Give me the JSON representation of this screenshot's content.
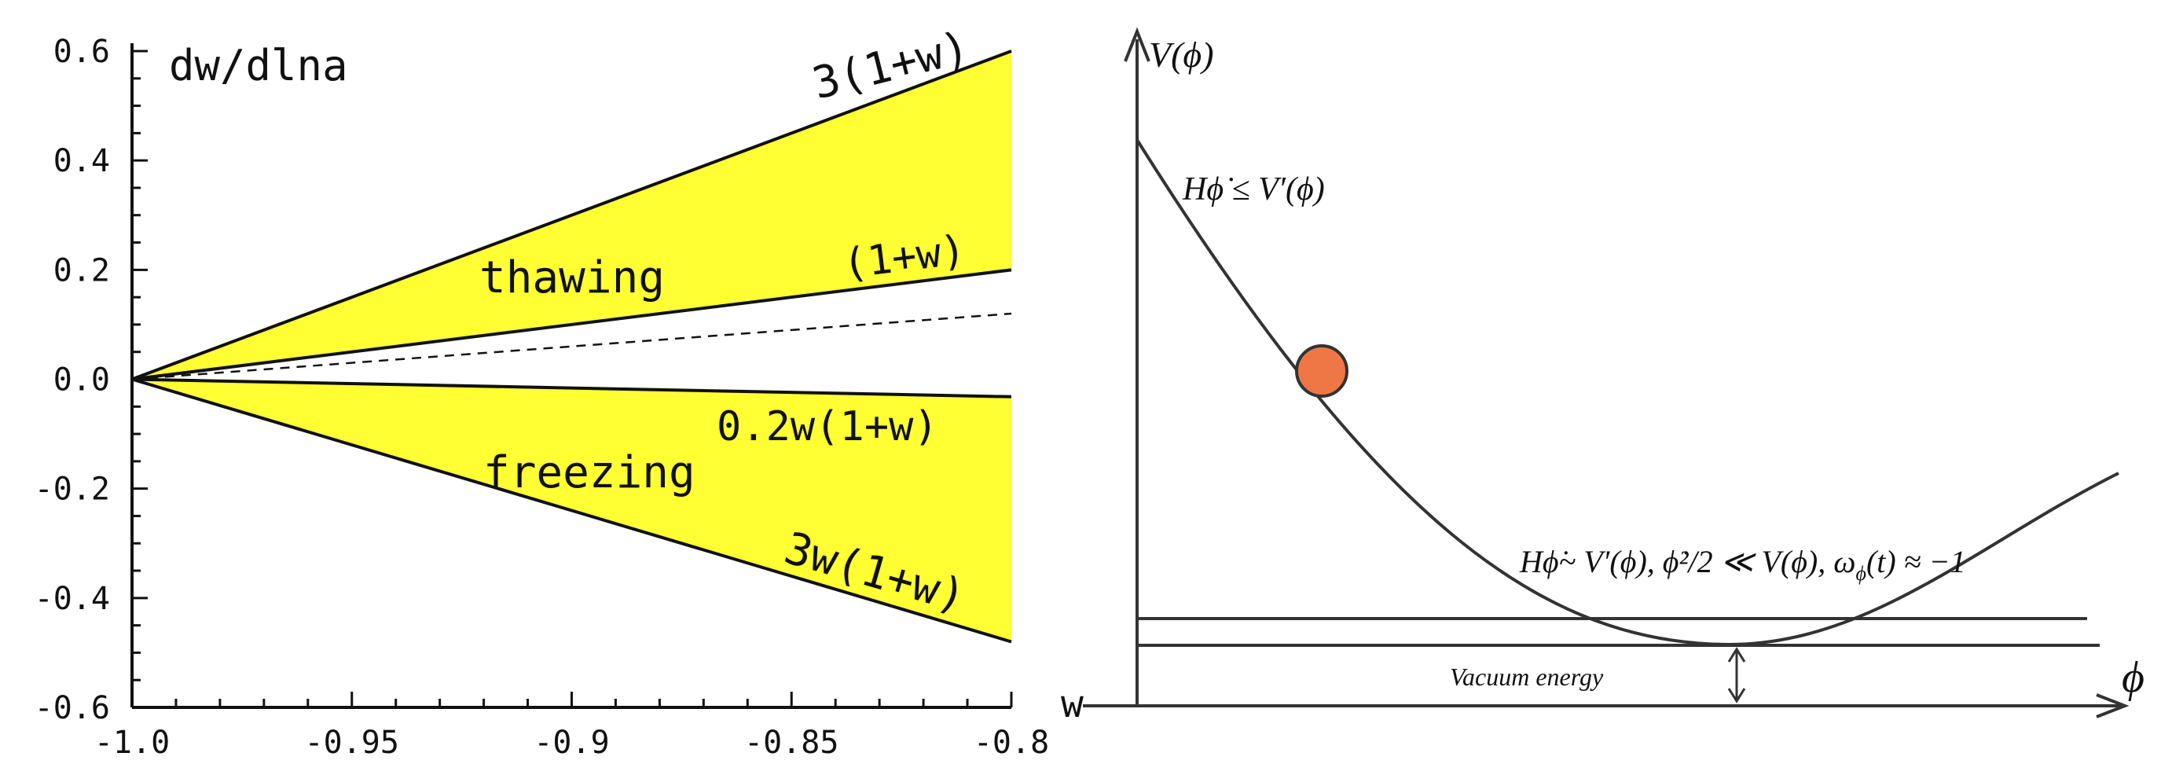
{
  "chart_data": [
    {
      "type": "area",
      "title": "",
      "ylabel": "dw/dlna",
      "xlabel": "",
      "xlim": [
        -1.0,
        -0.8
      ],
      "ylim": [
        -0.6,
        0.6
      ],
      "x_ticks": [
        -1.0,
        -0.95,
        -0.9,
        -0.85,
        -0.8
      ],
      "x_tick_labels": [
        "-1.0",
        "-0.95",
        "-0.9",
        "-0.85",
        "-0.8"
      ],
      "y_ticks": [
        -0.6,
        -0.4,
        -0.2,
        0.0,
        0.2,
        0.4,
        0.6
      ],
      "y_tick_labels": [
        "-0.6",
        "-0.4",
        "-0.2",
        "0.0",
        "0.2",
        "0.4",
        "0.6"
      ],
      "series": [
        {
          "name": "3(1+w)",
          "x": [
            -1.0,
            -0.8
          ],
          "y": [
            0.0,
            0.6
          ]
        },
        {
          "name": "(1+w)",
          "x": [
            -1.0,
            -0.8
          ],
          "y": [
            0.0,
            0.2
          ]
        },
        {
          "name": "",
          "style": "dashed",
          "x": [
            -1.0,
            -0.8
          ],
          "y": [
            0.0,
            0.12
          ]
        },
        {
          "name": "0.2w(1+w)",
          "x": [
            -1.0,
            -0.8
          ],
          "y": [
            0.0,
            -0.032
          ]
        },
        {
          "name": "3w(1+w)",
          "x": [
            -1.0,
            -0.8
          ],
          "y": [
            0.0,
            -0.48
          ]
        }
      ],
      "regions": [
        {
          "label": "thawing",
          "between": [
            "(1+w)",
            "3(1+w)"
          ],
          "color": "#FFFF33"
        },
        {
          "label": "freezing",
          "between": [
            "3w(1+w)",
            "0.2w(1+w)"
          ],
          "color": "#FFFF33"
        }
      ],
      "grid": false
    },
    {
      "type": "line",
      "title": "",
      "ylabel": "V(ϕ)",
      "xlabel": "ϕ",
      "y_axis_left_label": "w",
      "annotations": {
        "top": "Hϕ̇ ≤ V′(ϕ)",
        "bottom": "Hϕ̇~ V′(ϕ),  ϕ̇²/2 ≪ V(ϕ), ω",
        "bottom_sub": "ϕ",
        "bottom_tail": "(t) ≈ −1",
        "vacuum": "Vacuum energy"
      },
      "ball_color": "#EE7745"
    }
  ]
}
